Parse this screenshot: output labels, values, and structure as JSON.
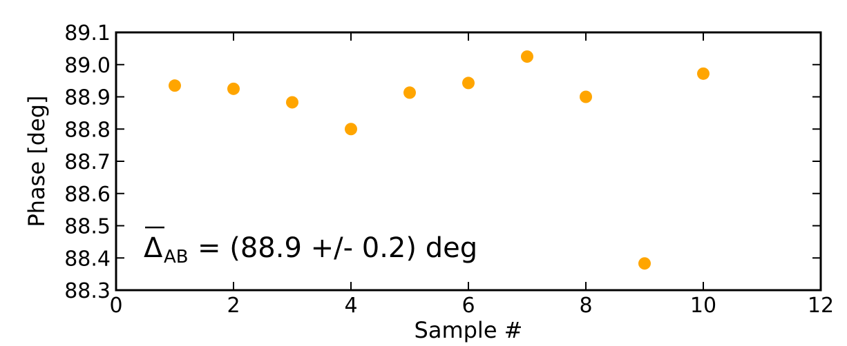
{
  "chart_data": {
    "type": "scatter",
    "title": "",
    "xlabel": "Sample #",
    "ylabel": "Phase [deg]",
    "xlim": [
      0,
      12
    ],
    "ylim": [
      88.3,
      89.1
    ],
    "xticks": [
      0,
      2,
      4,
      6,
      8,
      10,
      12
    ],
    "xtick_labels": [
      "0",
      "2",
      "4",
      "6",
      "8",
      "10",
      "12"
    ],
    "yticks": [
      88.3,
      88.4,
      88.5,
      88.6,
      88.7,
      88.8,
      88.9,
      89.0,
      89.1
    ],
    "ytick_labels": [
      "88.3",
      "88.4",
      "88.5",
      "88.6",
      "88.7",
      "88.8",
      "88.9",
      "89.0",
      "89.1"
    ],
    "grid": false,
    "marker_color": "#FFA500",
    "series": [
      {
        "x": [
          1,
          2,
          3,
          4,
          5,
          6,
          7,
          8,
          9,
          10
        ],
        "y": [
          88.935,
          88.925,
          88.883,
          88.8,
          88.913,
          88.943,
          89.025,
          88.9,
          88.383,
          88.972
        ]
      }
    ],
    "annotation": {
      "symbol": "Δ",
      "subscript": "AB",
      "text": "= (88.9 +/- 0.2) deg"
    }
  }
}
